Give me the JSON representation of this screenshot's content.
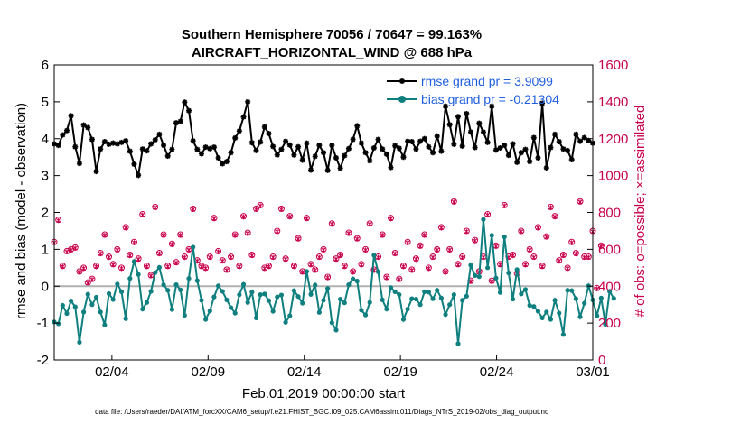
{
  "chart_data": {
    "type": "line",
    "title": "Southern Hemisphere 70056 / 70647 = 99.163%",
    "subtitle": "AIRCRAFT_HORIZONTAL_WIND @ 688 hPa",
    "ylabel": "rmse and bias (model - observation)",
    "y2label": "# of obs: o=possible; ×=assimilated",
    "xlabel": "Feb.01,2019 00:00:00 start",
    "footer": "data file: /Users/raeder/DAI/ATM_forcXX/CAM6_setup/f.e21.FHIST_BGC.f09_025.CAM6assim.011/Diags_NTrS_2019-02/obs_diag_output.nc",
    "xlim": [
      1,
      29
    ],
    "ylim": [
      -2,
      6
    ],
    "y2lim": [
      0,
      1600
    ],
    "xticks": [
      4,
      9,
      14,
      19,
      24,
      29
    ],
    "xtick_labels": [
      "02/04",
      "02/09",
      "02/14",
      "02/19",
      "02/24",
      "03/01"
    ],
    "yticks": [
      -2,
      -1,
      0,
      1,
      2,
      3,
      4,
      5,
      6
    ],
    "y2ticks": [
      0,
      200,
      400,
      600,
      800,
      1000,
      1200,
      1400,
      1600
    ],
    "legend_location": "top-right",
    "colors": {
      "rmse": "#000000",
      "bias": "#0f7f7f",
      "obs": "#c8004b",
      "legend_text": "#1f5fe0",
      "zero_line": "#b0b0b0"
    },
    "series": [
      {
        "name": "rmse grand pr = 3.9099",
        "key": "rmse",
        "values": [
          3.86,
          3.82,
          4.1,
          4.22,
          4.62,
          3.78,
          3.33,
          4.37,
          4.3,
          3.98,
          3.11,
          3.72,
          3.92,
          3.85,
          3.88,
          3.86,
          3.9,
          3.94,
          3.66,
          3.31,
          3.01,
          3.72,
          3.67,
          3.86,
          3.97,
          4.12,
          3.82,
          3.53,
          3.71,
          4.43,
          4.47,
          4.99,
          4.76,
          3.94,
          3.71,
          3.59,
          3.77,
          3.73,
          3.77,
          3.48,
          3.32,
          3.38,
          3.62,
          4.02,
          4.21,
          4.59,
          5.0,
          3.89,
          3.68,
          3.91,
          4.32,
          4.14,
          3.79,
          3.56,
          3.71,
          3.93,
          3.83,
          3.56,
          3.78,
          3.42,
          3.88,
          3.15,
          3.52,
          3.82,
          3.62,
          3.14,
          3.82,
          3.48,
          3.2,
          3.54,
          3.73,
          3.98,
          4.35,
          3.88,
          3.62,
          3.4,
          3.75,
          3.98,
          3.72,
          3.58,
          3.22,
          3.81,
          3.74,
          3.5,
          3.93,
          3.92,
          3.72,
          3.93,
          4.0,
          3.78,
          3.62,
          4.07,
          3.66,
          4.88,
          4.38,
          3.85,
          4.6,
          3.8,
          4.68,
          4.18,
          3.76,
          4.42,
          4.18,
          3.9,
          4.88,
          3.69,
          3.75,
          3.82,
          3.55,
          3.86,
          3.36,
          3.62,
          3.71,
          3.38,
          4.03,
          3.48,
          4.96,
          3.21,
          3.76,
          4.12,
          3.92,
          3.72,
          3.68,
          3.43,
          4.12,
          3.93,
          4.03,
          3.95,
          3.88
        ],
        "legend_label": "rmse grand pr = 3.9099"
      },
      {
        "name": "bias grand pr = -0.21304",
        "key": "bias",
        "values": [
          -0.97,
          -1.02,
          -0.52,
          -0.74,
          -0.4,
          -0.56,
          -1.52,
          -0.7,
          -0.22,
          -0.5,
          -0.3,
          -0.7,
          -1.05,
          -0.2,
          -0.36,
          0.06,
          -0.15,
          -0.88,
          0.21,
          0.67,
          0.32,
          -0.62,
          -0.44,
          -0.14,
          0.37,
          0.51,
          0.04,
          -0.11,
          -0.63,
          0.04,
          -0.1,
          -0.79,
          0.21,
          1.06,
          0.15,
          -0.38,
          -0.9,
          -0.67,
          -0.29,
          0.01,
          -0.14,
          -0.37,
          -0.58,
          -0.73,
          -0.23,
          0.05,
          -0.44,
          -0.16,
          -0.86,
          -0.23,
          -0.21,
          -0.39,
          -0.68,
          -0.29,
          -0.24,
          -0.98,
          -0.8,
          -0.12,
          -0.28,
          -0.46,
          0.4,
          -0.22,
          0.03,
          -0.71,
          -0.38,
          -0.06,
          -0.99,
          -1.19,
          -0.35,
          -0.45,
          0.04,
          0.2,
          0.14,
          -0.65,
          -0.78,
          -0.44,
          0.84,
          0.39,
          -0.37,
          -0.62,
          -0.04,
          -0.15,
          -0.23,
          -0.9,
          -0.62,
          -0.34,
          -0.35,
          -0.5,
          -0.15,
          -0.16,
          -0.34,
          -0.11,
          -0.32,
          -0.77,
          -0.5,
          -0.23,
          -1.56,
          -0.38,
          -0.27,
          0.57,
          0.29,
          0.26,
          1.81,
          0.5,
          1.38,
          0.22,
          -0.17,
          1.34,
          0.36,
          -0.35,
          0.45,
          -0.21,
          -0.09,
          -0.52,
          -0.55,
          -0.68,
          -0.86,
          -0.7,
          -0.9,
          -0.38,
          -0.73,
          -1.31,
          -0.11,
          -0.12,
          -0.34,
          -0.83,
          -0.46,
          0.01,
          -0.37,
          -0.8,
          -0.32,
          -1.03,
          -0.14,
          -0.33
        ],
        "legend_label": "bias grand pr = -0.21304"
      },
      {
        "name": "# of obs possible",
        "key": "obs_possible",
        "axis": "right",
        "marker": "o",
        "values": [
          640,
          760,
          510,
          590,
          600,
          610,
          480,
          500,
          420,
          440,
          510,
          580,
          680,
          560,
          520,
          600,
          500,
          720,
          570,
          640,
          550,
          790,
          510,
          460,
          830,
          580,
          680,
          510,
          630,
          530,
          680,
          560,
          600,
          820,
          540,
          510,
          500,
          560,
          770,
          590,
          540,
          490,
          560,
          680,
          510,
          780,
          690,
          570,
          820,
          840,
          500,
          510,
          560,
          700,
          820,
          550,
          780,
          510,
          660,
          480,
          770,
          520,
          490,
          560,
          600,
          450,
          740,
          550,
          570,
          510,
          690,
          480,
          660,
          520,
          600,
          740,
          490,
          560,
          680,
          450,
          770,
          580,
          440,
          510,
          640,
          490,
          550,
          620,
          680,
          500,
          560,
          600,
          720,
          480,
          600,
          860,
          520,
          560,
          700,
          430,
          650,
          480,
          560,
          790,
          430,
          620,
          520,
          840,
          560,
          570,
          470,
          700,
          520,
          600,
          560,
          720,
          510,
          670,
          830,
          780,
          540,
          570,
          500,
          640,
          580,
          860,
          560,
          560,
          700,
          390,
          620
        ],
        "marker_positions_note": "right-axis counts"
      },
      {
        "name": "# of obs assimilated",
        "key": "obs_assimilated",
        "axis": "right",
        "marker": "x",
        "values": [
          636,
          756,
          506,
          586,
          596,
          606,
          476,
          496,
          416,
          436,
          506,
          576,
          676,
          556,
          516,
          596,
          496,
          716,
          566,
          636,
          546,
          786,
          506,
          456,
          826,
          576,
          676,
          506,
          626,
          526,
          676,
          556,
          596,
          816,
          536,
          506,
          496,
          556,
          766,
          586,
          536,
          486,
          556,
          676,
          506,
          776,
          686,
          566,
          816,
          836,
          496,
          506,
          556,
          696,
          816,
          546,
          776,
          506,
          656,
          476,
          766,
          516,
          486,
          556,
          596,
          446,
          736,
          546,
          566,
          506,
          686,
          476,
          656,
          516,
          596,
          736,
          486,
          556,
          676,
          446,
          766,
          576,
          436,
          506,
          636,
          486,
          546,
          616,
          676,
          496,
          556,
          596,
          716,
          476,
          596,
          856,
          516,
          556,
          696,
          426,
          646,
          476,
          556,
          786,
          426,
          616,
          516,
          836,
          556,
          566,
          466,
          696,
          516,
          596,
          556,
          716,
          506,
          666,
          826,
          776,
          536,
          566,
          496,
          636,
          576,
          856,
          556,
          556,
          696,
          386,
          616
        ]
      }
    ]
  }
}
